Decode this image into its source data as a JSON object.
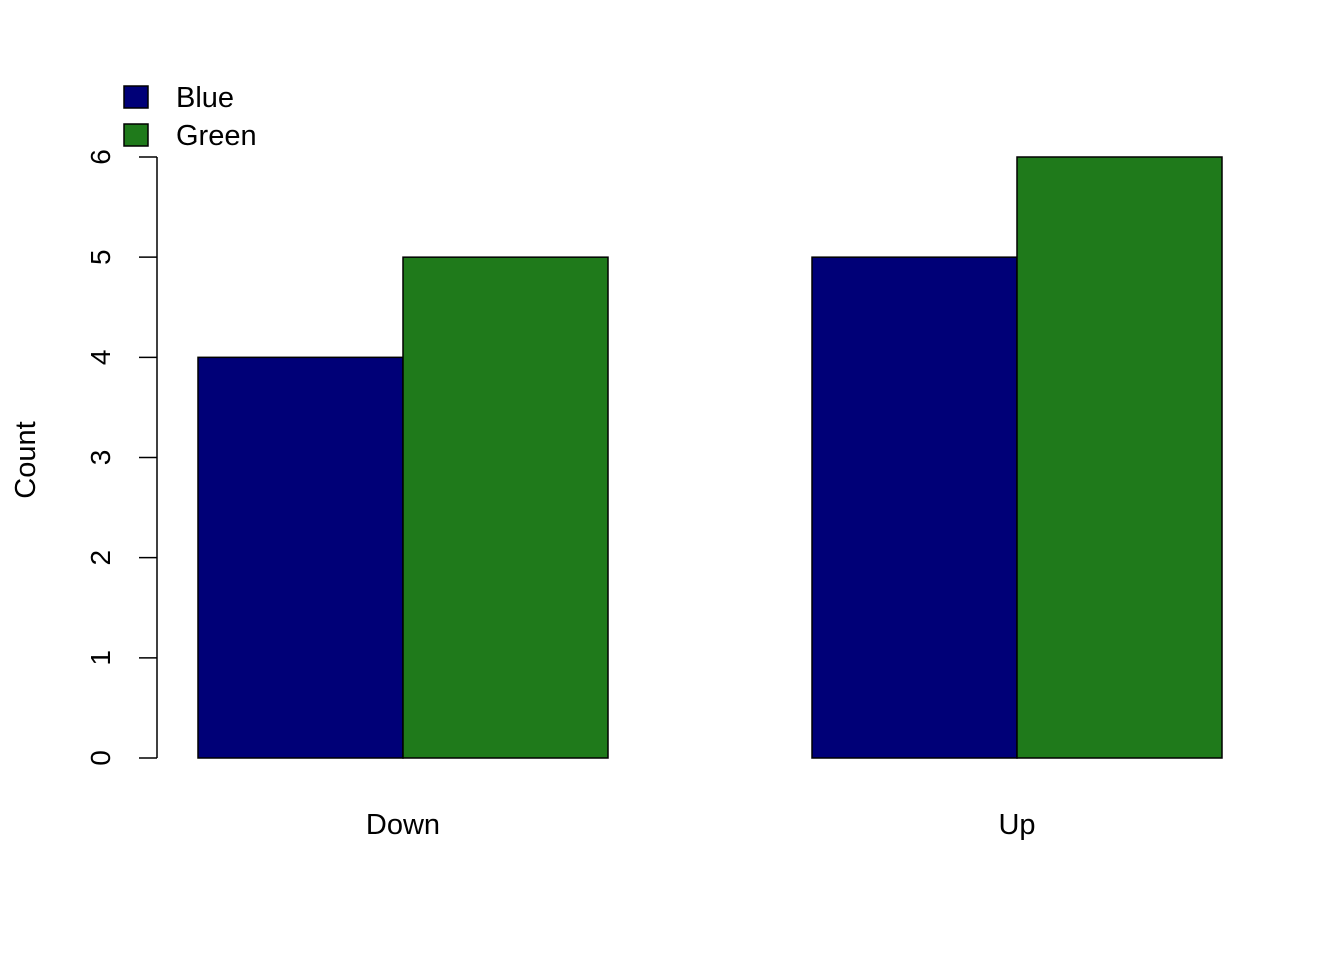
{
  "chart_data": {
    "type": "bar",
    "mode": "grouped",
    "categories": [
      "Down",
      "Up"
    ],
    "series": [
      {
        "name": "Blue",
        "color": "#000077",
        "values": [
          4,
          5
        ]
      },
      {
        "name": "Green",
        "color": "#1f7a1b",
        "values": [
          5,
          6
        ]
      }
    ],
    "ylabel": "Count",
    "xlabel": "",
    "title": "",
    "ylim": [
      0,
      6
    ],
    "yticks": [
      0,
      1,
      2,
      3,
      4,
      5,
      6
    ],
    "grid": false,
    "legend": {
      "position": "top-left",
      "entries": [
        "Blue",
        "Green"
      ]
    }
  }
}
